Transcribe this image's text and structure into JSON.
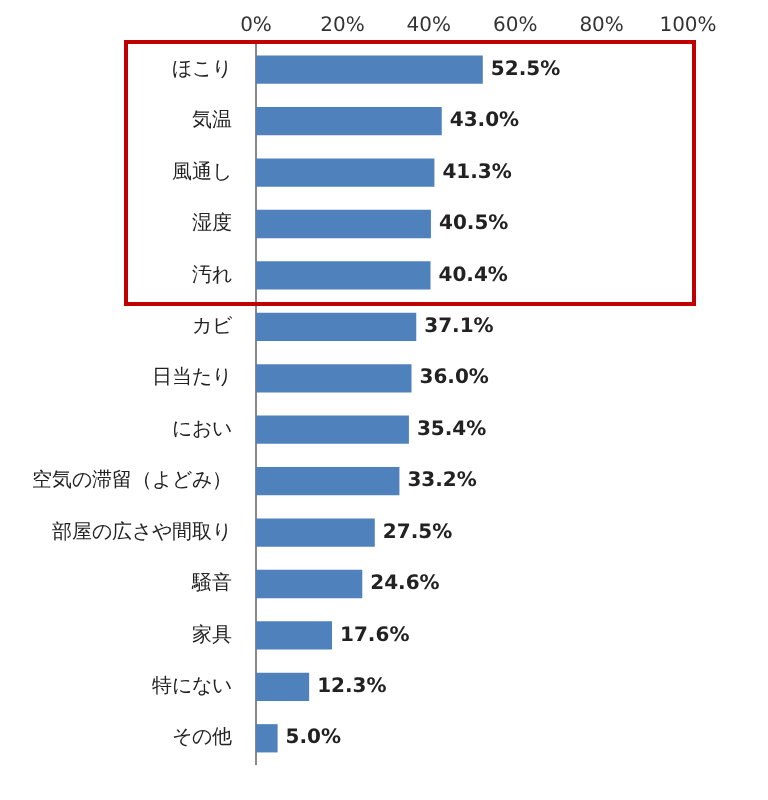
{
  "chart_data": {
    "type": "bar",
    "orientation": "horizontal",
    "categories": [
      "ほこり",
      "気温",
      "風通し",
      "湿度",
      "汚れ",
      "カビ",
      "日当たり",
      "におい",
      "空気の滞留（よどみ）",
      "部屋の広さや間取り",
      "騒音",
      "家具",
      "特にない",
      "その他"
    ],
    "values": [
      52.5,
      43.0,
      41.3,
      40.5,
      40.4,
      37.1,
      36.0,
      35.4,
      33.2,
      27.5,
      24.6,
      17.6,
      12.3,
      5.0
    ],
    "value_labels": [
      "52.5%",
      "43.0%",
      "41.3%",
      "40.5%",
      "40.4%",
      "37.1%",
      "36.0%",
      "35.4%",
      "33.2%",
      "27.5%",
      "24.6%",
      "17.6%",
      "12.3%",
      "5.0%"
    ],
    "color": "#4f81bd",
    "xlim": [
      0,
      100
    ],
    "xticks": [
      {
        "value": 0,
        "label": "0%"
      },
      {
        "value": 20,
        "label": "20%"
      },
      {
        "value": 40,
        "label": "40%"
      },
      {
        "value": 60,
        "label": "60%"
      },
      {
        "value": 80,
        "label": "80%"
      },
      {
        "value": 100,
        "label": "100%"
      }
    ],
    "grid": false,
    "legend": false
  }
}
